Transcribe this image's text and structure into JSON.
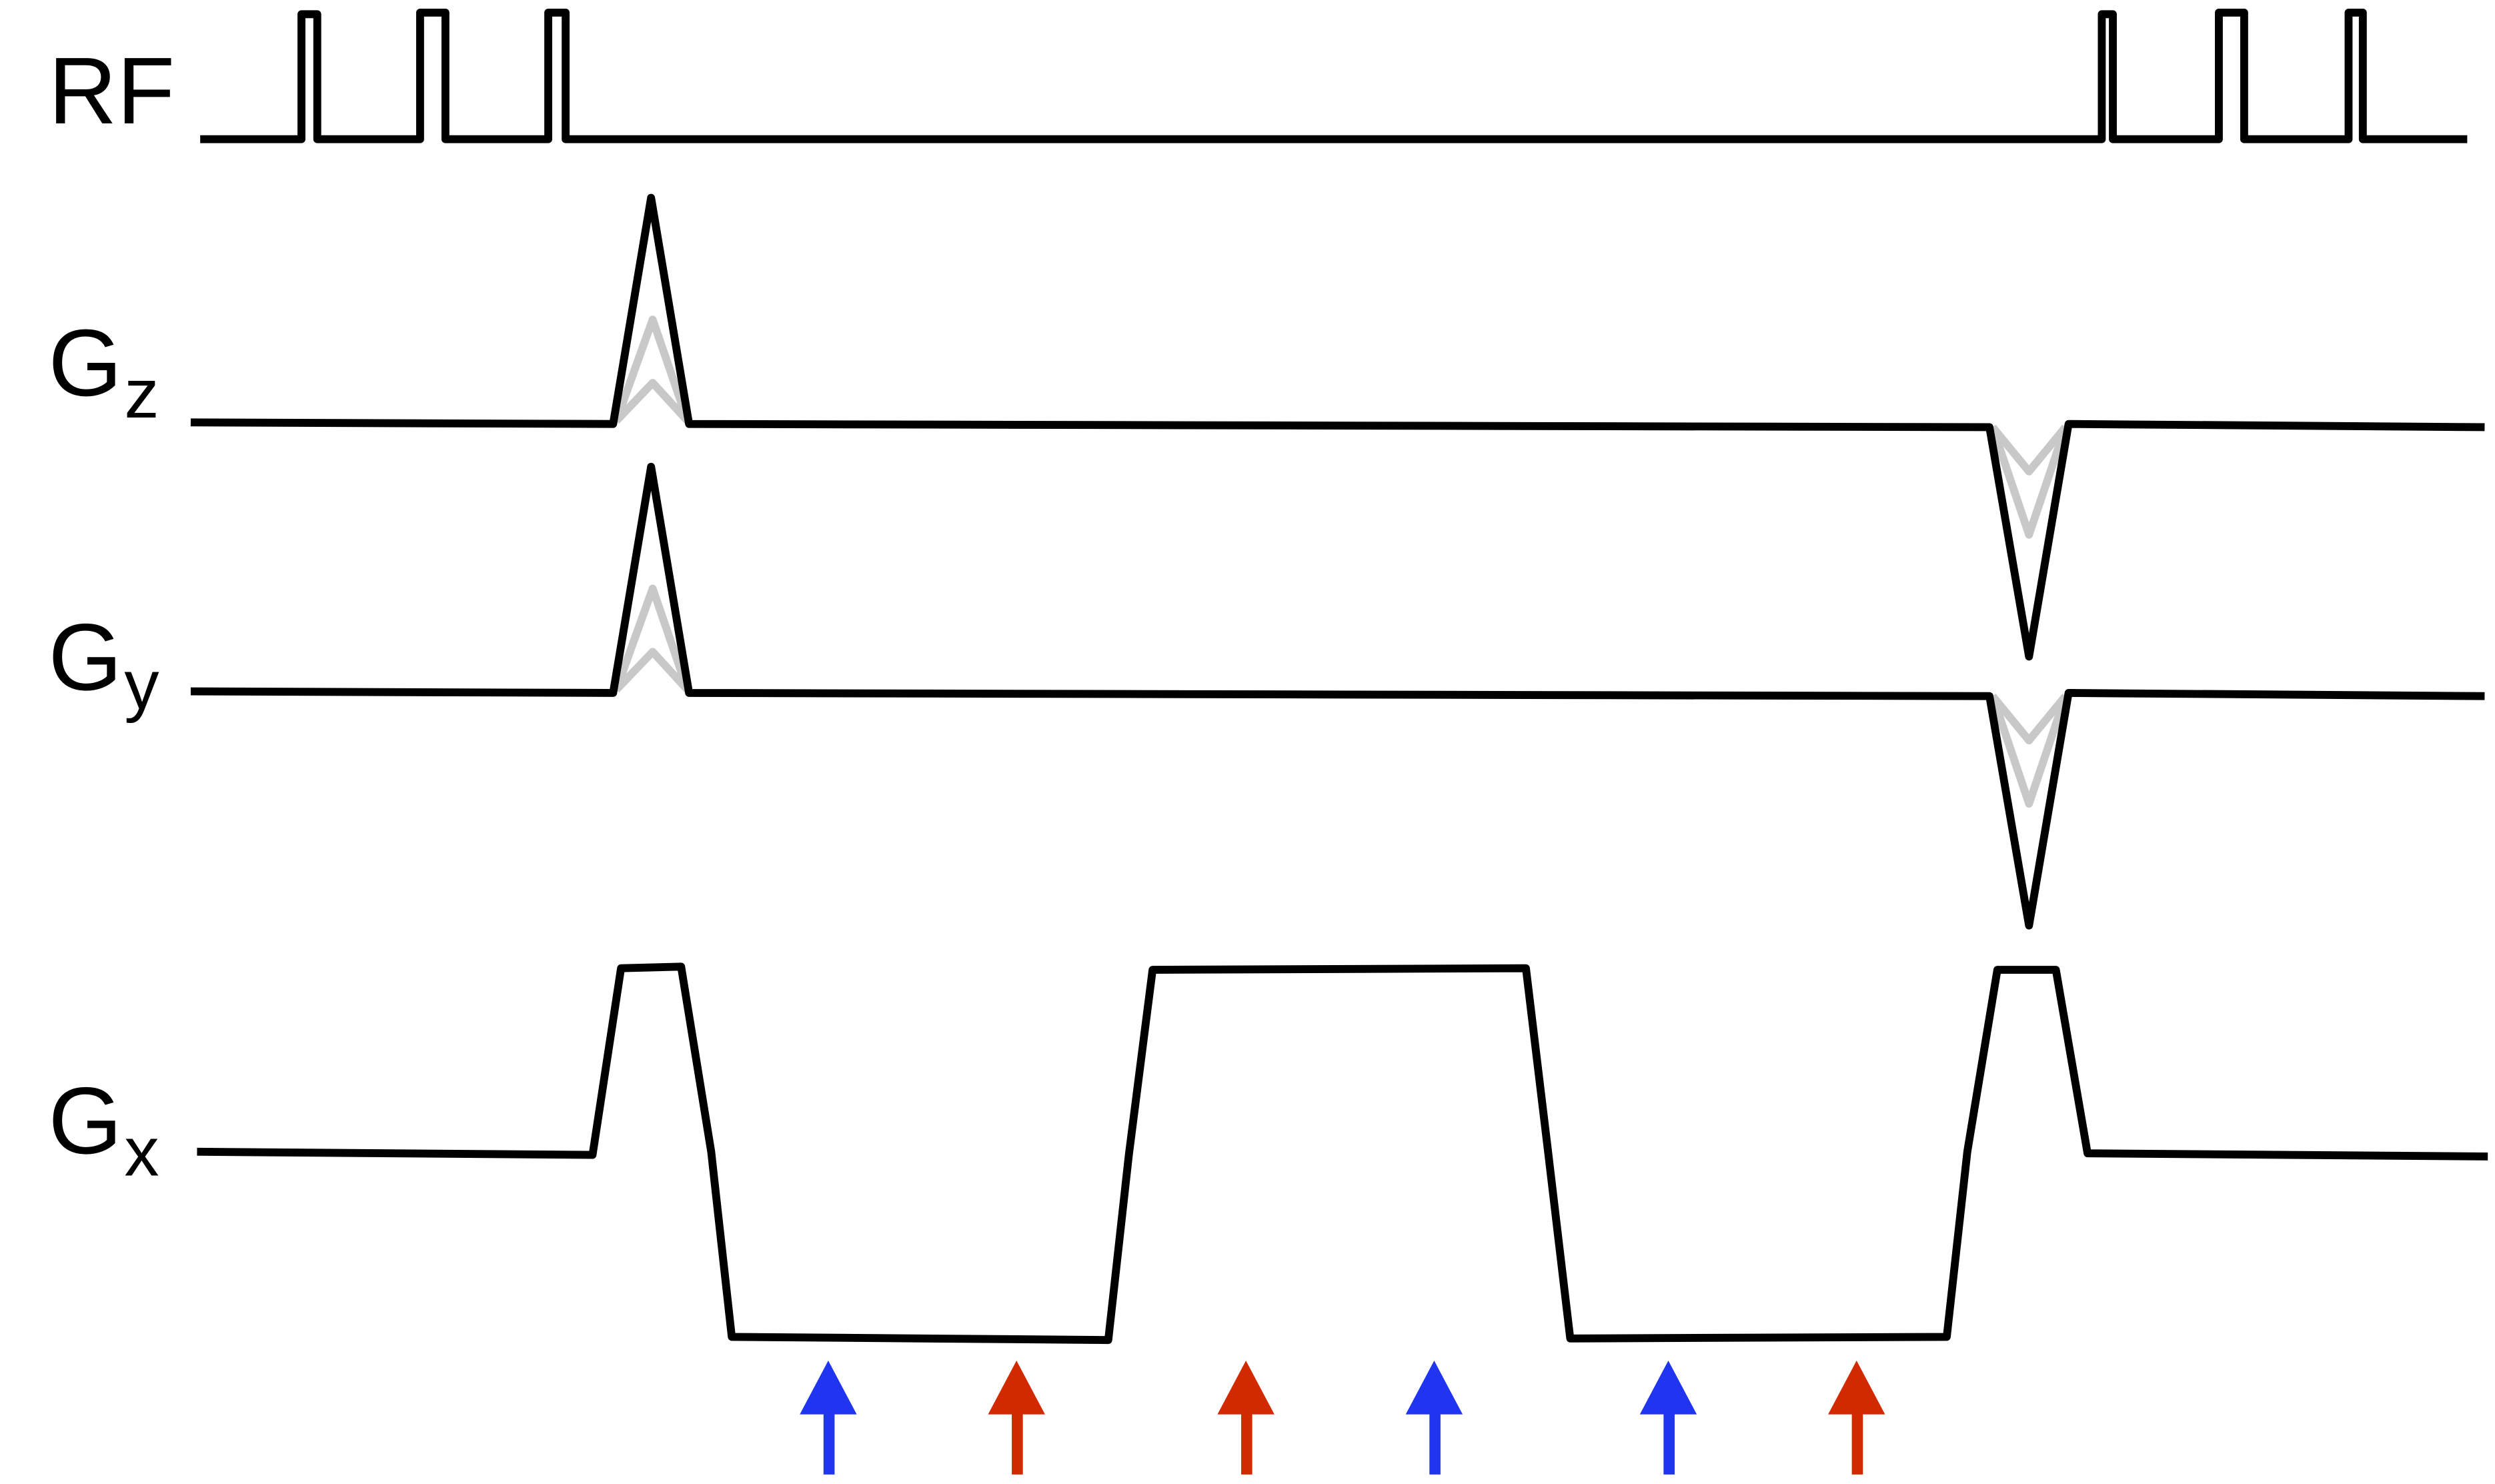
{
  "rows": [
    {
      "label": "RF"
    },
    {
      "label": "G",
      "subscript": "z"
    },
    {
      "label": "G",
      "subscript": "y"
    },
    {
      "label": "G",
      "subscript": "x"
    }
  ]
}
